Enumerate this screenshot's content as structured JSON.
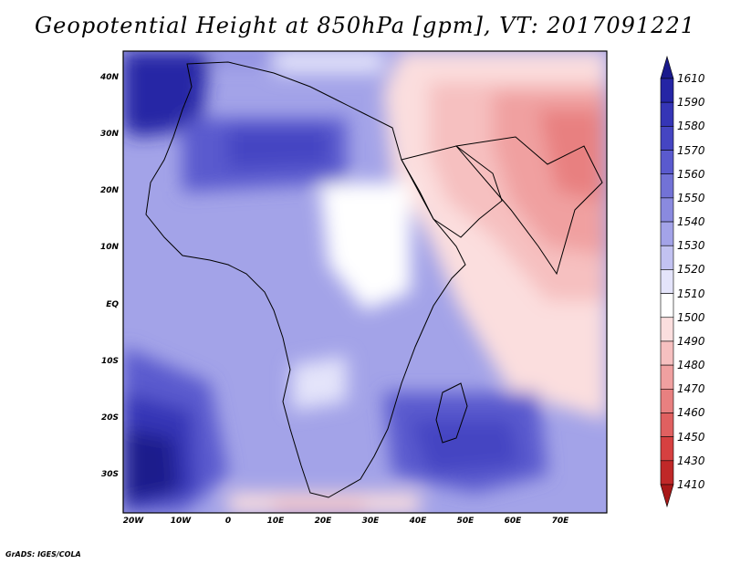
{
  "title": "Geopotential Height at 850hPa [gpm], VT: 2017091221",
  "credit": "GrADS: IGES/COLA",
  "colorbar": {
    "levels": [
      "1610",
      "1590",
      "1580",
      "1570",
      "1560",
      "1550",
      "1540",
      "1530",
      "1520",
      "1510",
      "1500",
      "1490",
      "1480",
      "1470",
      "1460",
      "1450",
      "1430",
      "1410"
    ],
    "colors": [
      "#1a1a8c",
      "#2525a5",
      "#3535b6",
      "#4545c2",
      "#5a5ace",
      "#7272d6",
      "#8a8adf",
      "#a3a3e8",
      "#c2c2f1",
      "#e4e4fa",
      "#ffffff",
      "#fbdede",
      "#f6c0c0",
      "#f0a0a0",
      "#e88080",
      "#e06060",
      "#d64040",
      "#c02828",
      "#a81818"
    ]
  },
  "lat_labels": [
    "40N",
    "30N",
    "20N",
    "10N",
    "EQ",
    "10S",
    "20S",
    "30S"
  ],
  "lon_labels": [
    "20W",
    "10W",
    "0",
    "10E",
    "20E",
    "30E",
    "40E",
    "50E",
    "60E",
    "70E"
  ],
  "map_region": {
    "lon_range": [
      -22,
      80
    ],
    "lat_range": [
      -37,
      46
    ],
    "variable": "850hPa geopotential height",
    "units": "gpm"
  }
}
